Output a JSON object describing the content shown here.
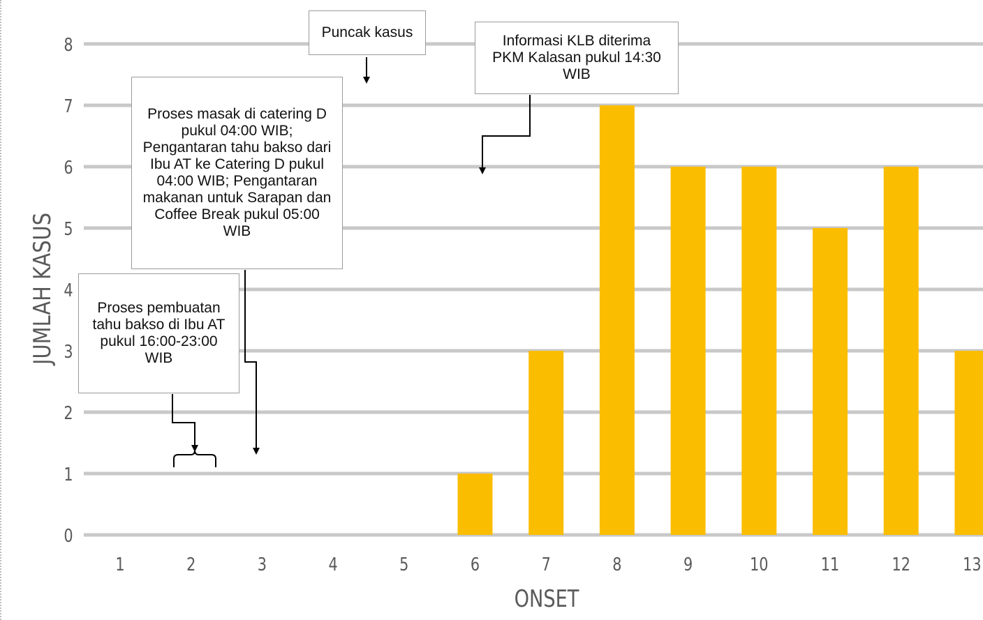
{
  "chart_data": {
    "type": "bar",
    "xlabel": "ONSET",
    "ylabel": "JUMLAH KASUS",
    "categories": [
      "1",
      "2",
      "3",
      "4",
      "5",
      "6",
      "7",
      "8",
      "9",
      "10",
      "11",
      "12",
      "13"
    ],
    "values": [
      0,
      0,
      0,
      0,
      0,
      1,
      3,
      7,
      6,
      6,
      5,
      6,
      3
    ],
    "ylim": [
      0,
      8
    ],
    "yticks": [
      0,
      1,
      2,
      3,
      4,
      5,
      6,
      7,
      8
    ],
    "grid": true,
    "bar_color": "#fbbd00",
    "annotations": [
      {
        "text": "Puncak kasus"
      },
      {
        "text": "Informasi KLB diterima PKM Kalasan pukul 14:30 WIB"
      },
      {
        "text": "Proses masak di catering D pukul 04:00 WIB; Pengantaran tahu bakso dari Ibu AT ke Catering D pukul 04:00 WIB; Pengantaran makanan untuk Sarapan dan Coffee Break pukul 05:00 WIB"
      },
      {
        "text": "Proses pembuatan tahu bakso di Ibu AT pukul 16:00-23:00 WIB"
      }
    ]
  }
}
